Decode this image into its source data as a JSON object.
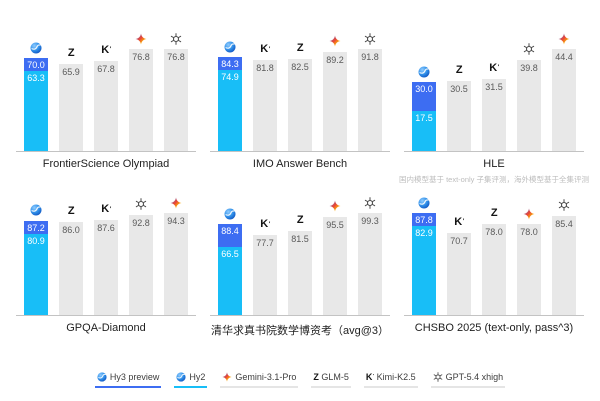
{
  "colors": {
    "hy3_blue": "#3D6DF2",
    "hy2_cyan": "#18BEF7",
    "bar_gray": "#E8E8E8",
    "value_label_gray": "#5A5A5A",
    "axis_line": "#C3C3C3",
    "title_text": "#1F1F1F",
    "footnote_text": "#BDBDBD",
    "legend_underline_gray": "#E5E5E5"
  },
  "legend": [
    {
      "label": "Hy3 preview",
      "icon": "hunyuan",
      "underline": "#3D6DF2"
    },
    {
      "label": "Hy2",
      "icon": "hunyuan",
      "underline": "#18BEF7"
    },
    {
      "label": "Gemini-3.1-Pro",
      "icon": "gemini",
      "underline": "#E5E5E5"
    },
    {
      "label": "GLM-5",
      "icon": "glm",
      "underline": "#E5E5E5"
    },
    {
      "label": "Kimi-K2.5",
      "icon": "kimi",
      "underline": "#E5E5E5"
    },
    {
      "label": "GPT-5.4 xhigh",
      "icon": "openai",
      "underline": "#E5E5E5"
    }
  ],
  "chart_data": [
    {
      "type": "bar",
      "id": "frontierscience-olympiad",
      "title": "FrontierScience Olympiad",
      "ylim": [
        0,
        76.8
      ],
      "bars": [
        {
          "model": "Hy3 preview / Hy2",
          "icon": "hunyuan",
          "values": {
            "hy3_preview": 70.0,
            "hy2": 63.3
          }
        },
        {
          "model": "GLM-5",
          "icon": "glm",
          "value": 65.9
        },
        {
          "model": "Kimi-K2.5",
          "icon": "kimi",
          "value": 67.8
        },
        {
          "model": "Gemini-3.1-Pro",
          "icon": "gemini",
          "value": 76.8
        },
        {
          "model": "GPT-5.4 xhigh",
          "icon": "openai",
          "value": 76.8
        }
      ]
    },
    {
      "type": "bar",
      "id": "imo-answer-bench",
      "title": "IMO Answer Bench",
      "ylim": [
        0,
        91.8
      ],
      "bars": [
        {
          "model": "Hy3 preview / Hy2",
          "icon": "hunyuan",
          "values": {
            "hy3_preview": 84.3,
            "hy2": 74.9
          }
        },
        {
          "model": "Kimi-K2.5",
          "icon": "kimi",
          "value": 81.8
        },
        {
          "model": "GLM-5",
          "icon": "glm",
          "value": 82.5
        },
        {
          "model": "Gemini-3.1-Pro",
          "icon": "gemini",
          "value": 89.2
        },
        {
          "model": "GPT-5.4 xhigh",
          "icon": "openai",
          "value": 91.8
        }
      ]
    },
    {
      "type": "bar",
      "id": "hle",
      "title": "HLE",
      "footnote": "国内模型基于 text-only 子集评测，海外模型基于全集评测",
      "ylim": [
        0,
        44.4
      ],
      "bars": [
        {
          "model": "Hy3 preview / Hy2",
          "icon": "hunyuan",
          "values": {
            "hy3_preview": 30.0,
            "hy2": 17.5
          }
        },
        {
          "model": "GLM-5",
          "icon": "glm",
          "value": 30.5
        },
        {
          "model": "Kimi-K2.5",
          "icon": "kimi",
          "value": 31.5
        },
        {
          "model": "GPT-5.4 xhigh",
          "icon": "openai",
          "value": 39.8
        },
        {
          "model": "Gemini-3.1-Pro",
          "icon": "gemini",
          "value": 44.4
        }
      ]
    },
    {
      "type": "bar",
      "id": "gpqa-diamond",
      "title": "GPQA-Diamond",
      "ylim": [
        0,
        94.3
      ],
      "bars": [
        {
          "model": "Hy3 preview / Hy2",
          "icon": "hunyuan",
          "values": {
            "hy3_preview": 87.2,
            "hy2": 80.9
          }
        },
        {
          "model": "GLM-5",
          "icon": "glm",
          "value": 86.0
        },
        {
          "model": "Kimi-K2.5",
          "icon": "kimi",
          "value": 87.6
        },
        {
          "model": "GPT-5.4 xhigh",
          "icon": "openai",
          "value": 92.8
        },
        {
          "model": "Gemini-3.1-Pro",
          "icon": "gemini",
          "value": 94.3
        }
      ]
    },
    {
      "type": "bar",
      "id": "qiuzhen-math-phd-exam",
      "title": "清华求真书院数学博资考（avg@3）",
      "ylim": [
        0,
        99.3
      ],
      "bars": [
        {
          "model": "Hy3 preview / Hy2",
          "icon": "hunyuan",
          "values": {
            "hy3_preview": 88.4,
            "hy2": 66.5
          }
        },
        {
          "model": "Kimi-K2.5",
          "icon": "kimi",
          "value": 77.7
        },
        {
          "model": "GLM-5",
          "icon": "glm",
          "value": 81.5
        },
        {
          "model": "Gemini-3.1-Pro",
          "icon": "gemini",
          "value": 95.5
        },
        {
          "model": "GPT-5.4 xhigh",
          "icon": "openai",
          "value": 99.3
        }
      ]
    },
    {
      "type": "bar",
      "id": "chsbo-2025",
      "title": "CHSBO 2025 (text-only, pass^3)",
      "ylim": [
        0,
        87.8
      ],
      "bars": [
        {
          "model": "Hy3 preview / Hy2",
          "icon": "hunyuan",
          "values": {
            "hy3_preview": 87.8,
            "hy2": 82.9
          }
        },
        {
          "model": "Kimi-K2.5",
          "icon": "kimi",
          "value": 70.7
        },
        {
          "model": "GLM-5",
          "icon": "glm",
          "value": 78.0
        },
        {
          "model": "Gemini-3.1-Pro",
          "icon": "gemini",
          "value": 78.0
        },
        {
          "model": "GPT-5.4 xhigh",
          "icon": "openai",
          "value": 85.4
        }
      ]
    }
  ]
}
